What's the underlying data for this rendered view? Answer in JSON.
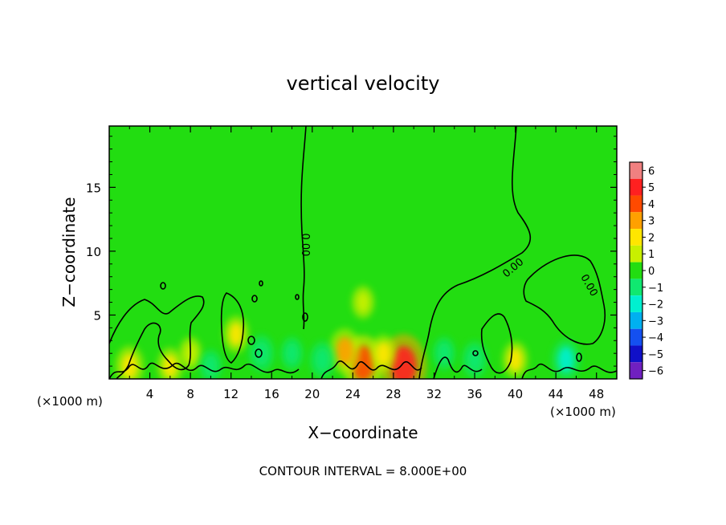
{
  "chart_data": {
    "type": "heatmap",
    "title": "vertical velocity",
    "xlabel": "X−coordinate",
    "ylabel": "Z−coordinate",
    "x_unit_left": "(×1000 m)",
    "x_unit_right": "(×1000 m)",
    "footer": "CONTOUR INTERVAL = 8.000E+00",
    "xlim": [
      0,
      50
    ],
    "ylim": [
      0,
      19.8
    ],
    "x_ticks": [
      4,
      8,
      12,
      16,
      20,
      24,
      28,
      32,
      36,
      40,
      44,
      48
    ],
    "y_ticks": [
      5,
      10,
      15
    ],
    "background_color": "#22dd11",
    "colorbar": {
      "levels": [
        6,
        5,
        4,
        3,
        2,
        1,
        0,
        -1,
        -2,
        -3,
        -4,
        -5,
        -6
      ],
      "level_labels": [
        "6",
        "5",
        "4",
        "3",
        "2",
        "1",
        "0",
        "−1",
        "−2",
        "−3",
        "−4",
        "−5",
        "−6"
      ],
      "colors": [
        "#f08080",
        "#ff2020",
        "#ff4a00",
        "#ffa000",
        "#ffe600",
        "#c8f000",
        "#22dd11",
        "#10e870",
        "#00f0d0",
        "#00b0f0",
        "#1450f0",
        "#1010c8",
        "#7020c0"
      ]
    },
    "contour_labels": [
      {
        "text": "0.00",
        "x": 19.0,
        "y": 10.5,
        "rotate": 90
      },
      {
        "text": "0.00",
        "x": 40.0,
        "y": 8.5,
        "rotate": -40
      },
      {
        "text": "0.00",
        "x": 47.0,
        "y": 7.2,
        "rotate": 60
      }
    ],
    "hotspots": [
      {
        "x": 29.0,
        "y": 1.0,
        "value": 5.0
      },
      {
        "x": 25.0,
        "y": 1.2,
        "value": 4.0
      },
      {
        "x": 23.2,
        "y": 2.2,
        "value": 2.5
      },
      {
        "x": 2.0,
        "y": 1.0,
        "value": 2.0
      },
      {
        "x": 12.5,
        "y": 3.5,
        "value": 1.5
      },
      {
        "x": 40.0,
        "y": 1.5,
        "value": 1.5
      },
      {
        "x": 27.0,
        "y": 2.0,
        "value": 1.5
      },
      {
        "x": 25.0,
        "y": 6.0,
        "value": 1.0
      },
      {
        "x": 6.0,
        "y": 1.0,
        "value": 1.5
      },
      {
        "x": 8.0,
        "y": 2.0,
        "value": 1.0
      },
      {
        "x": 15.0,
        "y": 2.0,
        "value": -1.5
      },
      {
        "x": 21.0,
        "y": 1.5,
        "value": -1.5
      },
      {
        "x": 45.0,
        "y": 1.5,
        "value": -2.0
      },
      {
        "x": 36.0,
        "y": 1.5,
        "value": -1.5
      },
      {
        "x": 10.0,
        "y": 1.0,
        "value": -1.0
      },
      {
        "x": 18.0,
        "y": 2.0,
        "value": -1.0
      },
      {
        "x": 33.0,
        "y": 2.0,
        "value": -1.0
      }
    ]
  }
}
